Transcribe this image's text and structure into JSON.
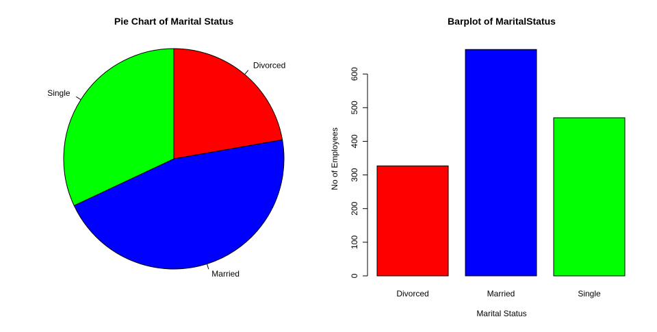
{
  "chart_data": [
    {
      "type": "pie",
      "title": "Pie Chart of Marital Status",
      "categories": [
        "Divorced",
        "Married",
        "Single"
      ],
      "values": [
        327,
        673,
        470
      ],
      "colors": [
        "#ff0000",
        "#0000ff",
        "#00ff00"
      ],
      "start": "12 o'clock",
      "direction": "clockwise"
    },
    {
      "type": "bar",
      "title": "Barplot of MaritalStatus",
      "categories": [
        "Divorced",
        "Married",
        "Single"
      ],
      "values": [
        327,
        673,
        470
      ],
      "colors": [
        "#ff0000",
        "#0000ff",
        "#00ff00"
      ],
      "xlabel": "Marital Status",
      "ylabel": "No of Employees",
      "ylim": [
        0,
        700
      ],
      "yticks": [
        "0",
        "100",
        "200",
        "300",
        "400",
        "500",
        "600"
      ],
      "grid": false,
      "legend": "none"
    }
  ]
}
